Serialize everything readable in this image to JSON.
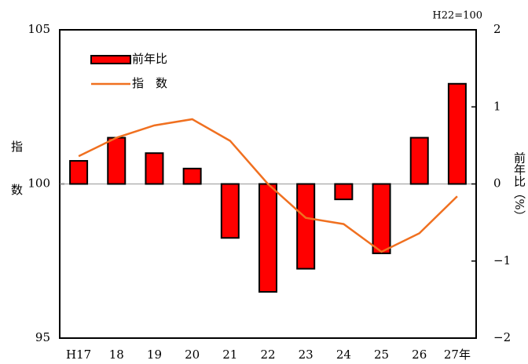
{
  "chart_data": {
    "type": "bar",
    "note": "H22=100",
    "y_label": "指数",
    "y2_label": "前年比（%）",
    "categories": [
      "H17",
      "18",
      "19",
      "20",
      "21",
      "22",
      "23",
      "24",
      "25",
      "26",
      "27年"
    ],
    "series": [
      {
        "name": "前年比",
        "type": "bar",
        "axis": "y2",
        "color": "#ff0000",
        "values": [
          0.3,
          0.6,
          0.4,
          0.2,
          -0.7,
          -1.4,
          -1.1,
          -0.2,
          -0.9,
          0.6,
          1.3
        ]
      },
      {
        "name": "指　数",
        "type": "line",
        "color": "#f07020",
        "values": [
          100.9,
          101.5,
          101.9,
          102.1,
          101.4,
          100.0,
          98.9,
          98.7,
          97.8,
          98.4,
          99.6
        ]
      }
    ],
    "ylim": [
      95,
      105
    ],
    "yticks": [
      95,
      100,
      105
    ],
    "y2lim": [
      -2,
      2
    ],
    "y2ticks": [
      {
        "value": -2,
        "label": "−2"
      },
      {
        "value": -1,
        "label": "−1"
      },
      0,
      1,
      2
    ],
    "grid": true,
    "legend": "upper left"
  }
}
